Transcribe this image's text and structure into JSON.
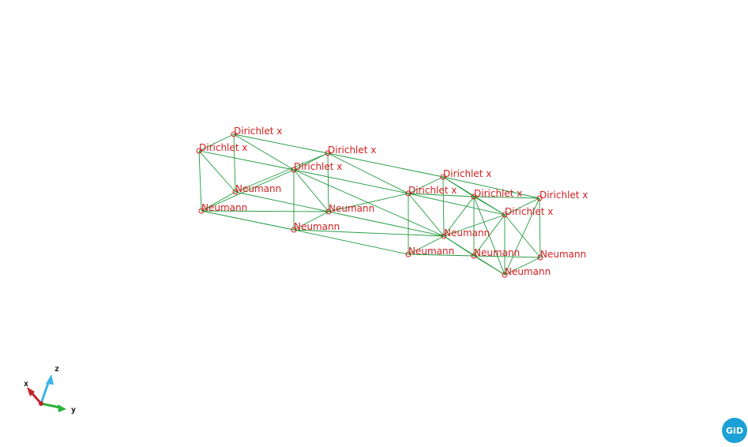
{
  "labels": {
    "dirichlet_x": "Dirichlet x",
    "neumann": "Neumann"
  },
  "axes": {
    "x": "x",
    "y": "y",
    "z": "z"
  },
  "logo_text": "GiD",
  "colors": {
    "mesh_edge": "#1f9a3c",
    "node_label": "#d42020",
    "x_axis": "#c0242a",
    "y_axis": "#2bb23a",
    "z_axis": "#3ab6e6",
    "logo": "#1ba1d6"
  }
}
